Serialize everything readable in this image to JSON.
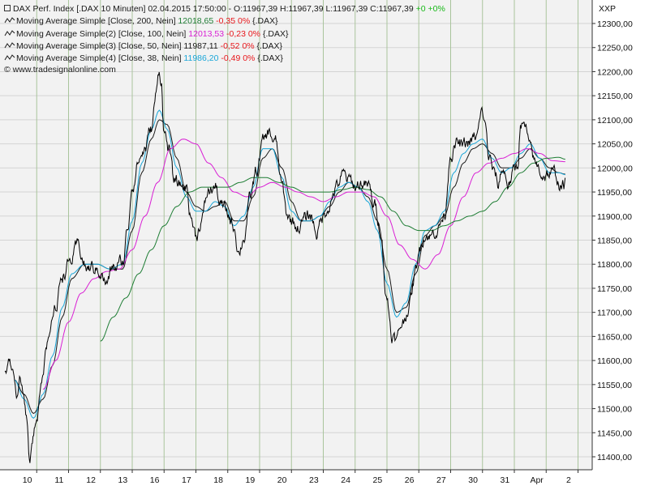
{
  "header": {
    "instrument": "DAX Perf. Index [.DAX  10 Minuten]",
    "timestamp": "02.04.2015 17:50:00",
    "ohlc": "- O:11967,39 H:11967,39 L:11967,39 C:11967,39",
    "change_abs": "+0",
    "change_pct": "+0%"
  },
  "symbol_label": "XXP",
  "credit": "© www.tradesignalonline.com",
  "indicators": [
    {
      "label": "Moving Average Simple [Close, 200, Nein]",
      "value": "12018,65",
      "change": "-0,35 0%",
      "source": "{.DAX}",
      "color": "#1e7d34"
    },
    {
      "label": "Moving Average Simple(2) [Close, 100, Nein]",
      "value": "12013,53",
      "change": "-0,23 0%",
      "source": "{.DAX}",
      "color": "#d91fd4"
    },
    {
      "label": "Moving Average Simple(3) [Close, 50, Nein]",
      "value": "11987,11",
      "change": "-0,52 0%",
      "source": "{.DAX}",
      "color": "#1a1a1a"
    },
    {
      "label": "Moving Average Simple(4) [Close, 38, Nein]",
      "value": "11986,20",
      "change": "-0,49 0%",
      "source": "{.DAX}",
      "color": "#1aa6d8"
    }
  ],
  "colors": {
    "price": "#000000",
    "grid_vertical": "#a9c49c",
    "grid_horizontal": "#d4d4d4",
    "background": "#f2f2f2",
    "negative": "#e8161b",
    "positive": "#17b817"
  },
  "chart_data": {
    "type": "line",
    "title": "DAX Perf. Index [.DAX  10 Minuten]",
    "xlabel": "",
    "ylabel": "",
    "ylim": [
      11400,
      12300
    ],
    "y_ticks": [
      "12300,00",
      "12250,00",
      "12200,00",
      "12150,00",
      "12100,00",
      "12050,00",
      "12000,00",
      "11950,00",
      "11900,00",
      "11850,00",
      "11800,00",
      "11750,00",
      "11700,00",
      "11650,00",
      "11600,00",
      "11550,00",
      "11500,00",
      "11450,00",
      "11400,00"
    ],
    "x_tick_labels": [
      "10",
      "11",
      "12",
      "13",
      "16",
      "17",
      "18",
      "19",
      "20",
      "23",
      "24",
      "25",
      "26",
      "27",
      "30",
      "31",
      "Apr",
      "2"
    ],
    "grid": true,
    "legend": "top-left",
    "sessions": 18,
    "price_anchors": [
      [
        0,
        11570
      ],
      [
        0.2,
        11590
      ],
      [
        0.35,
        11530
      ],
      [
        0.5,
        11560
      ],
      [
        0.7,
        11480
      ],
      [
        0.78,
        11410
      ],
      [
        0.86,
        11460
      ],
      [
        1.0,
        11470
      ],
      [
        1.15,
        11560
      ],
      [
        1.35,
        11630
      ],
      [
        1.6,
        11690
      ],
      [
        1.8,
        11780
      ],
      [
        2.0,
        11800
      ],
      [
        2.3,
        11830
      ],
      [
        2.6,
        11790
      ],
      [
        3.0,
        11790
      ],
      [
        3.2,
        11760
      ],
      [
        3.4,
        11790
      ],
      [
        3.7,
        11800
      ],
      [
        3.85,
        11870
      ],
      [
        4.0,
        11970
      ],
      [
        4.2,
        12020
      ],
      [
        4.4,
        12040
      ],
      [
        4.6,
        12080
      ],
      [
        4.75,
        12150
      ],
      [
        4.85,
        12200
      ],
      [
        4.92,
        12180
      ],
      [
        5.0,
        12080
      ],
      [
        5.15,
        12040
      ],
      [
        5.3,
        11970
      ],
      [
        5.5,
        11960
      ],
      [
        5.7,
        11960
      ],
      [
        5.85,
        11900
      ],
      [
        6.0,
        11860
      ],
      [
        6.2,
        11900
      ],
      [
        6.4,
        11950
      ],
      [
        6.6,
        11960
      ],
      [
        6.8,
        11920
      ],
      [
        7.0,
        11900
      ],
      [
        7.2,
        11880
      ],
      [
        7.35,
        11830
      ],
      [
        7.5,
        11860
      ],
      [
        7.7,
        11930
      ],
      [
        7.9,
        11990
      ],
      [
        8.1,
        12050
      ],
      [
        8.3,
        12070
      ],
      [
        8.5,
        12050
      ],
      [
        8.7,
        11960
      ],
      [
        8.85,
        11900
      ],
      [
        9.0,
        11890
      ],
      [
        9.2,
        11880
      ],
      [
        9.4,
        11890
      ],
      [
        9.6,
        11900
      ],
      [
        9.8,
        11870
      ],
      [
        10.0,
        11900
      ],
      [
        10.2,
        11930
      ],
      [
        10.4,
        11960
      ],
      [
        10.6,
        11980
      ],
      [
        10.8,
        11970
      ],
      [
        11.0,
        11960
      ],
      [
        11.2,
        11970
      ],
      [
        11.4,
        11960
      ],
      [
        11.6,
        11920
      ],
      [
        11.8,
        11880
      ],
      [
        12.0,
        11730
      ],
      [
        12.15,
        11660
      ],
      [
        12.3,
        11640
      ],
      [
        12.5,
        11680
      ],
      [
        12.7,
        11720
      ],
      [
        12.9,
        11780
      ],
      [
        13.0,
        11830
      ],
      [
        13.2,
        11870
      ],
      [
        13.4,
        11860
      ],
      [
        13.6,
        11880
      ],
      [
        13.8,
        11900
      ],
      [
        14.0,
        12040
      ],
      [
        14.2,
        12050
      ],
      [
        14.4,
        12040
      ],
      [
        14.6,
        12050
      ],
      [
        14.8,
        12060
      ],
      [
        15.0,
        12110
      ],
      [
        15.1,
        12080
      ],
      [
        15.2,
        12020
      ],
      [
        15.4,
        11980
      ],
      [
        15.5,
        11960
      ],
      [
        15.6,
        12000
      ],
      [
        15.7,
        11990
      ],
      [
        15.8,
        11970
      ],
      [
        16.0,
        11990
      ],
      [
        16.1,
        12000
      ],
      [
        16.2,
        12100
      ],
      [
        16.35,
        12080
      ],
      [
        16.5,
        12030
      ],
      [
        16.7,
        12000
      ],
      [
        16.9,
        11990
      ],
      [
        17.1,
        11990
      ],
      [
        17.3,
        11980
      ],
      [
        17.5,
        11960
      ],
      [
        17.6,
        11967
      ]
    ],
    "series": [
      {
        "name": "Moving Average Simple(3) [Close, 50, Nein]",
        "anchors": [
          [
            0.3,
            11560
          ],
          [
            0.6,
            11530
          ],
          [
            0.9,
            11490
          ],
          [
            1.2,
            11520
          ],
          [
            1.5,
            11590
          ],
          [
            1.8,
            11690
          ],
          [
            2.1,
            11770
          ],
          [
            2.5,
            11800
          ],
          [
            2.9,
            11800
          ],
          [
            3.3,
            11790
          ],
          [
            3.7,
            11790
          ],
          [
            4.0,
            11870
          ],
          [
            4.3,
            11990
          ],
          [
            4.6,
            12060
          ],
          [
            4.85,
            12100
          ],
          [
            5.1,
            12090
          ],
          [
            5.4,
            12020
          ],
          [
            5.7,
            11950
          ],
          [
            6.0,
            11920
          ],
          [
            6.3,
            11910
          ],
          [
            6.6,
            11920
          ],
          [
            6.9,
            11930
          ],
          [
            7.2,
            11890
          ],
          [
            7.5,
            11890
          ],
          [
            7.8,
            11940
          ],
          [
            8.1,
            12020
          ],
          [
            8.4,
            12040
          ],
          [
            8.7,
            12000
          ],
          [
            9.0,
            11930
          ],
          [
            9.3,
            11890
          ],
          [
            9.6,
            11890
          ],
          [
            9.9,
            11900
          ],
          [
            10.2,
            11920
          ],
          [
            10.5,
            11950
          ],
          [
            10.8,
            11970
          ],
          [
            11.1,
            11960
          ],
          [
            11.4,
            11940
          ],
          [
            11.7,
            11890
          ],
          [
            12.0,
            11790
          ],
          [
            12.3,
            11700
          ],
          [
            12.6,
            11710
          ],
          [
            12.9,
            11780
          ],
          [
            13.2,
            11860
          ],
          [
            13.5,
            11880
          ],
          [
            13.8,
            11900
          ],
          [
            14.1,
            11960
          ],
          [
            14.4,
            12010
          ],
          [
            14.7,
            12040
          ],
          [
            15.0,
            12050
          ],
          [
            15.3,
            12030
          ],
          [
            15.6,
            12000
          ],
          [
            15.9,
            12000
          ],
          [
            16.2,
            12020
          ],
          [
            16.5,
            12040
          ],
          [
            16.8,
            12020
          ],
          [
            17.1,
            12000
          ],
          [
            17.4,
            11990
          ],
          [
            17.6,
            11987
          ]
        ]
      },
      {
        "name": "Moving Average Simple(4) [Close, 38, Nein]",
        "anchors": [
          [
            0.3,
            11560
          ],
          [
            0.6,
            11520
          ],
          [
            0.9,
            11480
          ],
          [
            1.2,
            11530
          ],
          [
            1.5,
            11610
          ],
          [
            1.8,
            11710
          ],
          [
            2.1,
            11780
          ],
          [
            2.5,
            11800
          ],
          [
            2.9,
            11800
          ],
          [
            3.3,
            11790
          ],
          [
            3.7,
            11800
          ],
          [
            4.0,
            11890
          ],
          [
            4.3,
            12010
          ],
          [
            4.6,
            12080
          ],
          [
            4.85,
            12120
          ],
          [
            5.1,
            12080
          ],
          [
            5.4,
            12000
          ],
          [
            5.7,
            11940
          ],
          [
            6.0,
            11910
          ],
          [
            6.3,
            11910
          ],
          [
            6.6,
            11930
          ],
          [
            6.9,
            11920
          ],
          [
            7.2,
            11880
          ],
          [
            7.5,
            11900
          ],
          [
            7.8,
            11960
          ],
          [
            8.1,
            12040
          ],
          [
            8.4,
            12040
          ],
          [
            8.7,
            11980
          ],
          [
            9.0,
            11910
          ],
          [
            9.3,
            11890
          ],
          [
            9.6,
            11890
          ],
          [
            9.9,
            11900
          ],
          [
            10.2,
            11930
          ],
          [
            10.5,
            11960
          ],
          [
            10.8,
            11970
          ],
          [
            11.1,
            11960
          ],
          [
            11.4,
            11930
          ],
          [
            11.7,
            11870
          ],
          [
            12.0,
            11760
          ],
          [
            12.3,
            11690
          ],
          [
            12.6,
            11720
          ],
          [
            12.9,
            11800
          ],
          [
            13.2,
            11870
          ],
          [
            13.5,
            11880
          ],
          [
            13.8,
            11910
          ],
          [
            14.1,
            11990
          ],
          [
            14.4,
            12030
          ],
          [
            14.7,
            12050
          ],
          [
            15.0,
            12060
          ],
          [
            15.3,
            12020
          ],
          [
            15.6,
            11990
          ],
          [
            15.9,
            12000
          ],
          [
            16.2,
            12030
          ],
          [
            16.5,
            12050
          ],
          [
            16.8,
            12020
          ],
          [
            17.1,
            11990
          ],
          [
            17.4,
            11990
          ],
          [
            17.6,
            11986
          ]
        ]
      },
      {
        "name": "Moving Average Simple(2) [Close, 100, Nein]",
        "anchors": [
          [
            1.2,
            11540
          ],
          [
            1.6,
            11600
          ],
          [
            2.0,
            11680
          ],
          [
            2.4,
            11740
          ],
          [
            2.8,
            11770
          ],
          [
            3.2,
            11785
          ],
          [
            3.6,
            11790
          ],
          [
            4.0,
            11830
          ],
          [
            4.4,
            11900
          ],
          [
            4.8,
            11970
          ],
          [
            5.2,
            12040
          ],
          [
            5.6,
            12060
          ],
          [
            6.0,
            12050
          ],
          [
            6.4,
            12010
          ],
          [
            6.8,
            11980
          ],
          [
            7.2,
            11950
          ],
          [
            7.6,
            11940
          ],
          [
            8.0,
            11960
          ],
          [
            8.4,
            11970
          ],
          [
            8.8,
            11960
          ],
          [
            9.2,
            11950
          ],
          [
            9.6,
            11940
          ],
          [
            10.0,
            11930
          ],
          [
            10.4,
            11940
          ],
          [
            10.8,
            11950
          ],
          [
            11.2,
            11950
          ],
          [
            11.6,
            11940
          ],
          [
            12.0,
            11900
          ],
          [
            12.4,
            11840
          ],
          [
            12.8,
            11810
          ],
          [
            13.2,
            11790
          ],
          [
            13.6,
            11820
          ],
          [
            14.0,
            11880
          ],
          [
            14.4,
            11940
          ],
          [
            14.8,
            11990
          ],
          [
            15.2,
            12010
          ],
          [
            15.6,
            12020
          ],
          [
            16.0,
            12030
          ],
          [
            16.4,
            12040
          ],
          [
            16.8,
            12030
          ],
          [
            17.2,
            12015
          ],
          [
            17.6,
            12013
          ]
        ]
      },
      {
        "name": "Moving Average Simple [Close, 200, Nein]",
        "anchors": [
          [
            3.0,
            11640
          ],
          [
            3.4,
            11690
          ],
          [
            3.8,
            11730
          ],
          [
            4.2,
            11780
          ],
          [
            4.6,
            11830
          ],
          [
            5.0,
            11880
          ],
          [
            5.4,
            11920
          ],
          [
            5.8,
            11950
          ],
          [
            6.2,
            11960
          ],
          [
            6.6,
            11960
          ],
          [
            7.0,
            11960
          ],
          [
            7.4,
            11970
          ],
          [
            7.8,
            11980
          ],
          [
            8.2,
            11980
          ],
          [
            8.6,
            11970
          ],
          [
            9.0,
            11960
          ],
          [
            9.4,
            11950
          ],
          [
            9.8,
            11950
          ],
          [
            10.2,
            11950
          ],
          [
            10.6,
            11955
          ],
          [
            11.0,
            11960
          ],
          [
            11.4,
            11955
          ],
          [
            11.8,
            11940
          ],
          [
            12.2,
            11910
          ],
          [
            12.6,
            11880
          ],
          [
            13.0,
            11870
          ],
          [
            13.4,
            11870
          ],
          [
            13.8,
            11880
          ],
          [
            14.2,
            11890
          ],
          [
            14.6,
            11900
          ],
          [
            15.0,
            11910
          ],
          [
            15.4,
            11930
          ],
          [
            15.8,
            11960
          ],
          [
            16.2,
            11990
          ],
          [
            16.6,
            12010
          ],
          [
            17.0,
            12020
          ],
          [
            17.4,
            12022
          ],
          [
            17.6,
            12018
          ]
        ]
      }
    ]
  }
}
